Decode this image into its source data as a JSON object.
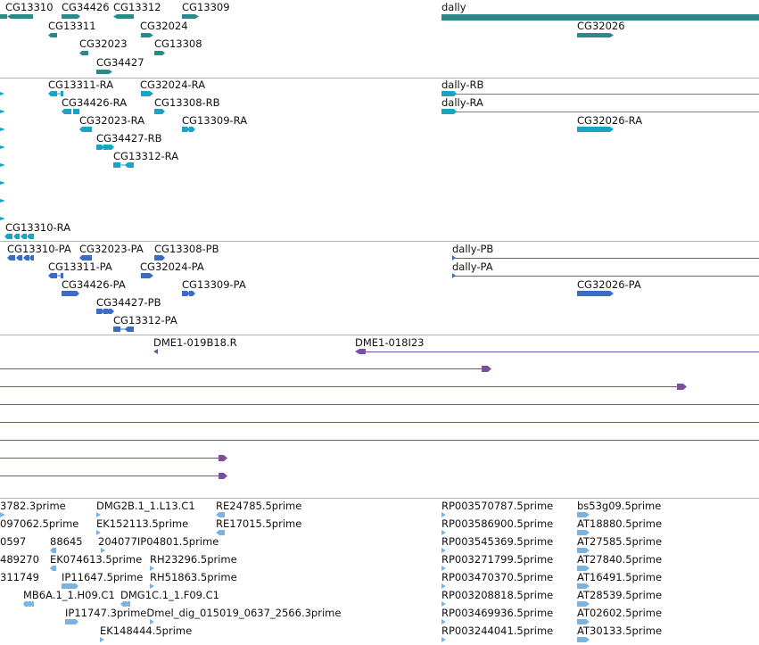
{
  "colors": {
    "gene": "#2a8a8a",
    "transcript": "#1ba3c6",
    "protein": "#3a6cc6",
    "clone": "#7a4fa3",
    "est": "#7ab3de",
    "separator": "#a8b4bf"
  },
  "tracks": {
    "genes": {
      "labels": [
        "CG13310",
        "CG34426",
        "CG13312",
        "CG13309",
        "dally",
        "CG13311",
        "CG32024",
        "CG32026",
        "CG32023",
        "CG13308",
        "CG34427"
      ]
    },
    "transcripts": {
      "labels": [
        "CG13311-RA",
        "CG32024-RA",
        "dally-RB",
        "CG34426-RA",
        "CG13308-RB",
        "dally-RA",
        "CG32023-RA",
        "CG13309-RA",
        "CG32026-RA",
        "CG34427-RB",
        "CG13312-RA",
        "CG13310-RA"
      ]
    },
    "proteins": {
      "labels": [
        "CG13310-PA",
        "CG32023-PA",
        "CG13308-PB",
        "dally-PB",
        "CG13311-PA",
        "CG32024-PA",
        "dally-PA",
        "CG34426-PA",
        "CG13309-PA",
        "CG32026-PA",
        "CG34427-PB",
        "CG13312-PA"
      ]
    },
    "clones": {
      "labels": [
        "DME1-019B18.R",
        "DME1-018I23"
      ]
    },
    "ests": {
      "labels": [
        "3782.3prime",
        "DMG2B.1_1.L13.C1",
        "RE24785.5prime",
        "RP003570787.5prime",
        "bs53g09.5prime",
        "097062.5prime",
        "EK152113.5prime",
        "RE17015.5prime",
        "RP003586900.5prime",
        "AT18880.5prime",
        "0597",
        "88645",
        "204077IP04801.5prime",
        "RP003545369.5prime",
        "AT27585.5prime",
        "489270",
        "EK074613.5prime",
        "RH23296.5prime",
        "RP003271799.5prime",
        "AT27840.5prime",
        "311749",
        "IP11647.5prime",
        "RH51863.5prime",
        "RP003470370.5prime",
        "AT16491.5prime",
        "MB6A.1_1.H09.C1",
        "DMG1C.1_1.F09.C1",
        "RP003208818.5prime",
        "AT28539.5prime",
        "IP11747.3primeDmel_dig_015019_0637_2566.3prime",
        "RP003469936.5prime",
        "AT02602.5prime",
        "EK148444.5prime",
        "RP003244041.5prime",
        "AT30133.5prime"
      ]
    }
  }
}
